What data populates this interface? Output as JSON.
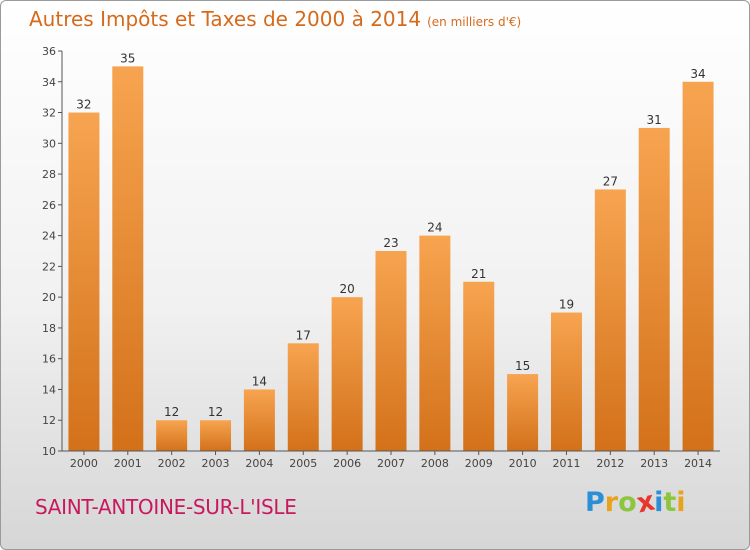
{
  "header": {
    "title": "Autres Impôts et Taxes de 2000 à 2014",
    "unit": "(en milliers d'€)"
  },
  "footer": {
    "place": "SAINT-ANTOINE-SUR-L'ISLE",
    "brand_letters": [
      "P",
      "r",
      "o",
      "x",
      "i",
      "t",
      "i"
    ],
    "brand_colors": [
      "#2a8fd6",
      "#e8a21c",
      "#8cc63f",
      "#e8362d",
      "#2a8fd6",
      "#8cc63f",
      "#e8a21c"
    ]
  },
  "chart_data": {
    "type": "bar",
    "categories": [
      "2000",
      "2001",
      "2002",
      "2003",
      "2004",
      "2005",
      "2006",
      "2007",
      "2008",
      "2009",
      "2010",
      "2011",
      "2012",
      "2013",
      "2014"
    ],
    "values": [
      32,
      35,
      12,
      12,
      14,
      17,
      20,
      23,
      24,
      21,
      15,
      19,
      27,
      31,
      34
    ],
    "ylim": [
      10,
      36
    ],
    "yticks": [
      10,
      12,
      14,
      16,
      18,
      20,
      22,
      24,
      26,
      28,
      30,
      32,
      34,
      36
    ],
    "grid": false,
    "bar_color_light": "#f7a450",
    "bar_color_dark": "#d3711a"
  }
}
